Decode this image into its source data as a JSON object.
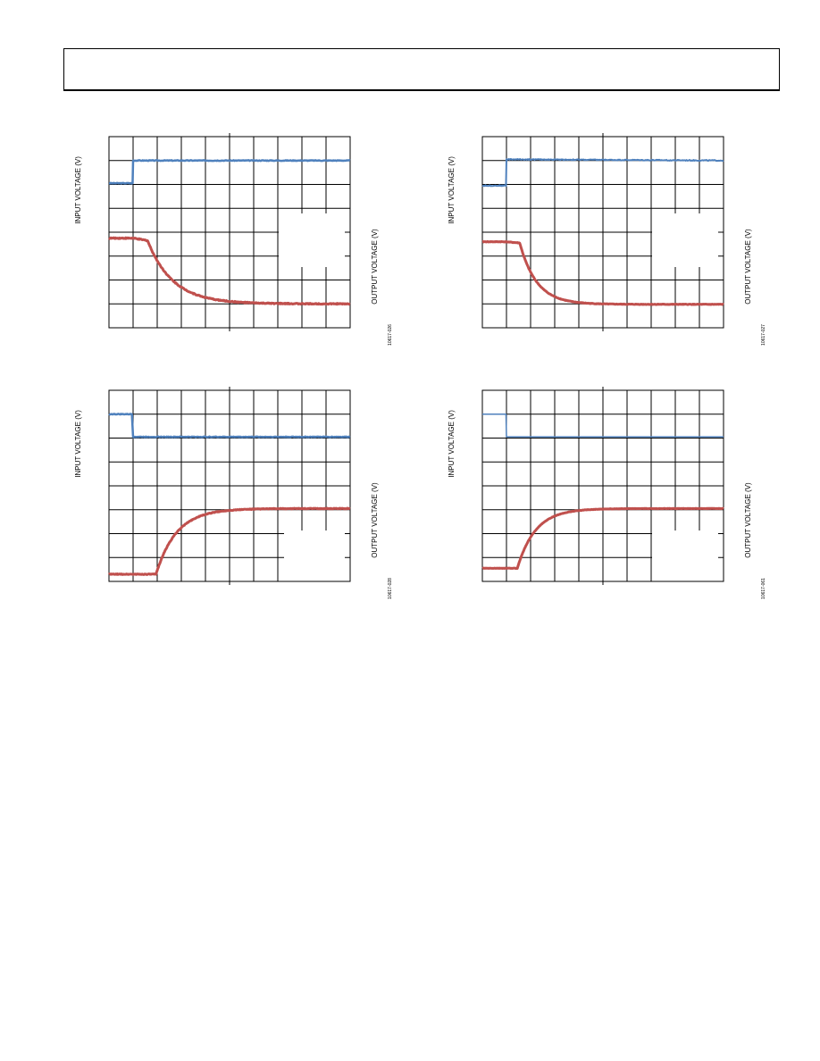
{
  "header": {},
  "colors": {
    "input_trace": "#4f81bd",
    "output_trace": "#c0504d",
    "grid": "#000000"
  },
  "chart_data": [
    {
      "type": "line",
      "ylabel_left": "INPUT VOLTAGE (V)",
      "ylabel_right": "OUTPUT VOLTAGE (V)",
      "figure_id": "10617-026",
      "grid": true,
      "divisions": [
        10,
        8
      ],
      "note": "Values in grid divisions: x 0-10, y 0-8 (bottom=0).",
      "series": [
        {
          "role": "input",
          "line_width": 2.5,
          "noise": 0.015,
          "points": [
            [
              0,
              6.05
            ],
            [
              0.98,
              6.05
            ],
            [
              1.0,
              7.0
            ],
            [
              10,
              7.0
            ]
          ]
        },
        {
          "role": "output",
          "line_width": 3,
          "noise": 0.02,
          "shape": "fall",
          "start": 3.75,
          "end": 1.0,
          "t0": 1.6,
          "tau": 1.05,
          "pre_droop": 0.1
        }
      ]
    },
    {
      "type": "line",
      "ylabel_left": "INPUT VOLTAGE (V)",
      "ylabel_right": "OUTPUT VOLTAGE (V)",
      "figure_id": "10617-027",
      "grid": true,
      "divisions": [
        10,
        8
      ],
      "series": [
        {
          "role": "input",
          "line_width": 2,
          "noise": 0.02,
          "points": [
            [
              0,
              5.95
            ],
            [
              0.98,
              5.95
            ],
            [
              1.0,
              7.05
            ],
            [
              10,
              7.0
            ]
          ]
        },
        {
          "role": "output",
          "line_width": 3,
          "noise": 0.012,
          "shape": "fall",
          "start": 3.6,
          "end": 0.98,
          "t0": 1.55,
          "tau": 0.7,
          "pre_droop": 0.05
        }
      ]
    },
    {
      "type": "line",
      "ylabel_left": "INPUT VOLTAGE (V)",
      "ylabel_right": "OUTPUT VOLTAGE (V)",
      "figure_id": "10617-028",
      "grid": true,
      "divisions": [
        10,
        8
      ],
      "series": [
        {
          "role": "input",
          "line_width": 2.5,
          "noise": 0.015,
          "points": [
            [
              0,
              7.0
            ],
            [
              0.95,
              7.0
            ],
            [
              1.0,
              6.05
            ],
            [
              10,
              6.05
            ]
          ]
        },
        {
          "role": "output",
          "line_width": 3,
          "noise": 0.015,
          "shape": "rise",
          "start": 0.3,
          "end": 3.05,
          "t0": 1.95,
          "tau": 0.85
        }
      ]
    },
    {
      "type": "line",
      "ylabel_left": "INPUT VOLTAGE (V)",
      "ylabel_right": "OUTPUT VOLTAGE (V)",
      "figure_id": "10617-061",
      "grid": true,
      "divisions": [
        10,
        8
      ],
      "series": [
        {
          "role": "input",
          "line_width": 1.5,
          "noise": 0.0,
          "points": [
            [
              0,
              7.0
            ],
            [
              0.98,
              7.0
            ],
            [
              1.0,
              6.05
            ],
            [
              10,
              6.05
            ]
          ]
        },
        {
          "role": "output",
          "line_width": 3,
          "noise": 0.008,
          "shape": "rise",
          "start": 0.55,
          "end": 3.05,
          "t0": 1.45,
          "tau": 0.75
        }
      ]
    }
  ]
}
